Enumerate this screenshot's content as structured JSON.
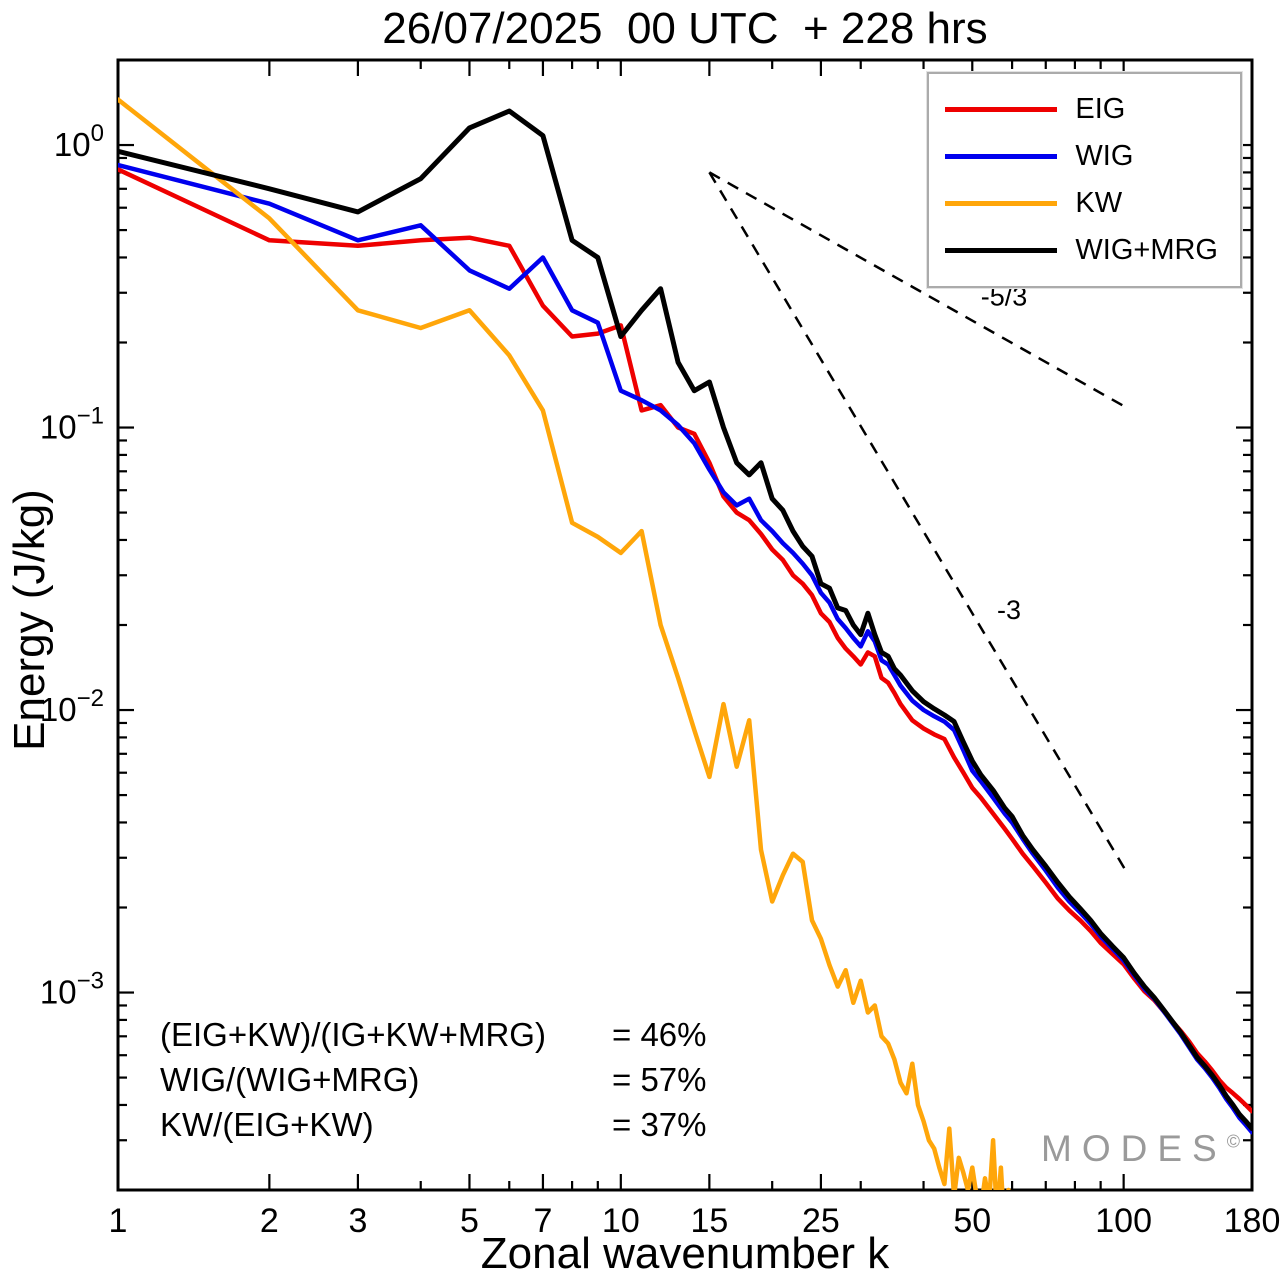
{
  "title": "26/07/2025  00 UTC  + 228 hrs",
  "watermark": {
    "text": "MODES",
    "sup": "©"
  },
  "annotations": {
    "ratios": [
      {
        "label": "(EIG+KW)/(IG+KW+MRG)",
        "value": "= 46%"
      },
      {
        "label": "WIG/(WIG+MRG)",
        "value": "= 57%"
      },
      {
        "label": "KW/(EIG+KW)",
        "value": "= 37%"
      }
    ]
  },
  "chart_data": {
    "type": "line",
    "title": "26/07/2025  00 UTC  + 228 hrs",
    "xlabel": "Zonal wavenumber k",
    "ylabel": "Energy (J/kg)",
    "xscale": "log",
    "yscale": "log",
    "xlim": [
      1,
      180
    ],
    "ylim": [
      0.0002,
      2
    ],
    "grid": false,
    "xticks": [
      1,
      2,
      3,
      5,
      7,
      10,
      15,
      25,
      50,
      100,
      180
    ],
    "ytick_exponents": [
      0,
      -1,
      -2,
      -3
    ],
    "legend": {
      "position": "top-right"
    },
    "reflines": [
      {
        "label": "-5/3",
        "x": [
          15,
          101
        ],
        "y": [
          0.8,
          0.118
        ],
        "label_at": [
          52,
          0.27
        ]
      },
      {
        "label": "-3",
        "x": [
          15,
          101
        ],
        "y": [
          0.8,
          0.0027
        ],
        "label_at": [
          56,
          0.021
        ]
      }
    ],
    "series": [
      {
        "name": "EIG",
        "color": "#ee0000",
        "width": 4.5,
        "points": [
          [
            1,
            0.82
          ],
          [
            2,
            0.46
          ],
          [
            3,
            0.44
          ],
          [
            4,
            0.46
          ],
          [
            5,
            0.47
          ],
          [
            6,
            0.44
          ],
          [
            7,
            0.27
          ],
          [
            8,
            0.21
          ],
          [
            9,
            0.215
          ],
          [
            10,
            0.23
          ],
          [
            11,
            0.115
          ],
          [
            12,
            0.12
          ],
          [
            13,
            0.1
          ],
          [
            14,
            0.095
          ],
          [
            15,
            0.075
          ],
          [
            16,
            0.057
          ],
          [
            17,
            0.05
          ],
          [
            18,
            0.047
          ],
          [
            19,
            0.042
          ],
          [
            20,
            0.037
          ],
          [
            21,
            0.034
          ],
          [
            22,
            0.03
          ],
          [
            23,
            0.028
          ],
          [
            24,
            0.0255
          ],
          [
            25,
            0.022
          ],
          [
            26,
            0.0205
          ],
          [
            27,
            0.018
          ],
          [
            28,
            0.0165
          ],
          [
            29,
            0.0155
          ],
          [
            30,
            0.0145
          ],
          [
            31,
            0.016
          ],
          [
            32,
            0.0155
          ],
          [
            33,
            0.013
          ],
          [
            34,
            0.0125
          ],
          [
            35,
            0.0115
          ],
          [
            36,
            0.0105
          ],
          [
            38,
            0.0092
          ],
          [
            40,
            0.0086
          ],
          [
            42,
            0.0082
          ],
          [
            44,
            0.0079
          ],
          [
            46,
            0.0068
          ],
          [
            48,
            0.006
          ],
          [
            50,
            0.0053
          ],
          [
            52,
            0.0049
          ],
          [
            55,
            0.0043
          ],
          [
            58,
            0.0038
          ],
          [
            60,
            0.0035
          ],
          [
            63,
            0.0031
          ],
          [
            66,
            0.0028
          ],
          [
            70,
            0.00245
          ],
          [
            74,
            0.00215
          ],
          [
            78,
            0.00195
          ],
          [
            82,
            0.0018
          ],
          [
            86,
            0.00165
          ],
          [
            90,
            0.0015
          ],
          [
            95,
            0.00137
          ],
          [
            100,
            0.00126
          ],
          [
            105,
            0.00112
          ],
          [
            110,
            0.00101
          ],
          [
            115,
            0.00094
          ],
          [
            120,
            0.00086
          ],
          [
            125,
            0.00079
          ],
          [
            130,
            0.00073
          ],
          [
            135,
            0.00067
          ],
          [
            140,
            0.00061
          ],
          [
            145,
            0.00057
          ],
          [
            150,
            0.00053
          ],
          [
            155,
            0.00049
          ],
          [
            160,
            0.00046
          ],
          [
            165,
            0.00044
          ],
          [
            170,
            0.00042
          ],
          [
            175,
            0.0004
          ],
          [
            180,
            0.00038
          ]
        ]
      },
      {
        "name": "WIG",
        "color": "#0000ee",
        "width": 4.5,
        "points": [
          [
            1,
            0.85
          ],
          [
            2,
            0.62
          ],
          [
            3,
            0.46
          ],
          [
            4,
            0.52
          ],
          [
            5,
            0.36
          ],
          [
            6,
            0.31
          ],
          [
            7,
            0.4
          ],
          [
            8,
            0.26
          ],
          [
            9,
            0.235
          ],
          [
            10,
            0.135
          ],
          [
            11,
            0.125
          ],
          [
            12,
            0.115
          ],
          [
            13,
            0.102
          ],
          [
            14,
            0.088
          ],
          [
            15,
            0.071
          ],
          [
            16,
            0.059
          ],
          [
            17,
            0.053
          ],
          [
            18,
            0.056
          ],
          [
            19,
            0.047
          ],
          [
            20,
            0.043
          ],
          [
            21,
            0.039
          ],
          [
            22,
            0.036
          ],
          [
            23,
            0.033
          ],
          [
            24,
            0.03
          ],
          [
            25,
            0.026
          ],
          [
            26,
            0.024
          ],
          [
            27,
            0.021
          ],
          [
            28,
            0.0195
          ],
          [
            29,
            0.018
          ],
          [
            30,
            0.0168
          ],
          [
            31,
            0.019
          ],
          [
            32,
            0.0175
          ],
          [
            33,
            0.015
          ],
          [
            34,
            0.0145
          ],
          [
            35,
            0.0133
          ],
          [
            36,
            0.0122
          ],
          [
            38,
            0.0108
          ],
          [
            40,
            0.01
          ],
          [
            42,
            0.0095
          ],
          [
            44,
            0.0091
          ],
          [
            46,
            0.0085
          ],
          [
            48,
            0.0072
          ],
          [
            50,
            0.0061
          ],
          [
            52,
            0.0056
          ],
          [
            55,
            0.0049
          ],
          [
            58,
            0.0043
          ],
          [
            60,
            0.004
          ],
          [
            63,
            0.0035
          ],
          [
            66,
            0.0031
          ],
          [
            70,
            0.0027
          ],
          [
            74,
            0.00235
          ],
          [
            78,
            0.0021
          ],
          [
            82,
            0.00192
          ],
          [
            86,
            0.00175
          ],
          [
            90,
            0.00158
          ],
          [
            95,
            0.00143
          ],
          [
            100,
            0.0013
          ],
          [
            105,
            0.00115
          ],
          [
            110,
            0.00103
          ],
          [
            115,
            0.00095
          ],
          [
            120,
            0.00086
          ],
          [
            125,
            0.00078
          ],
          [
            130,
            0.00071
          ],
          [
            135,
            0.00064
          ],
          [
            140,
            0.00058
          ],
          [
            145,
            0.00054
          ],
          [
            150,
            0.0005
          ],
          [
            155,
            0.00046
          ],
          [
            160,
            0.00042
          ],
          [
            165,
            0.00039
          ],
          [
            170,
            0.00036
          ],
          [
            175,
            0.00034
          ],
          [
            180,
            0.00032
          ]
        ]
      },
      {
        "name": "KW",
        "color": "#ffa60a",
        "width": 4.5,
        "points": [
          [
            1,
            1.45
          ],
          [
            2,
            0.55
          ],
          [
            3,
            0.26
          ],
          [
            4,
            0.225
          ],
          [
            5,
            0.26
          ],
          [
            6,
            0.18
          ],
          [
            7,
            0.115
          ],
          [
            8,
            0.046
          ],
          [
            9,
            0.041
          ],
          [
            10,
            0.036
          ],
          [
            11,
            0.043
          ],
          [
            12,
            0.02
          ],
          [
            13,
            0.013
          ],
          [
            14,
            0.0085
          ],
          [
            15,
            0.0058
          ],
          [
            16,
            0.0105
          ],
          [
            17,
            0.0063
          ],
          [
            18,
            0.0092
          ],
          [
            19,
            0.0032
          ],
          [
            20,
            0.0021
          ],
          [
            21,
            0.0026
          ],
          [
            22,
            0.0031
          ],
          [
            23,
            0.0029
          ],
          [
            24,
            0.0018
          ],
          [
            25,
            0.00155
          ],
          [
            26,
            0.00125
          ],
          [
            27,
            0.00105
          ],
          [
            28,
            0.0012
          ],
          [
            29,
            0.00092
          ],
          [
            30,
            0.0011
          ],
          [
            31,
            0.00085
          ],
          [
            32,
            0.0009
          ],
          [
            33,
            0.0007
          ],
          [
            34,
            0.00066
          ],
          [
            35,
            0.00058
          ],
          [
            36,
            0.00048
          ],
          [
            37,
            0.00044
          ],
          [
            38,
            0.00056
          ],
          [
            39,
            0.0004
          ],
          [
            40,
            0.00035
          ],
          [
            41,
            0.0003
          ],
          [
            42,
            0.00028
          ],
          [
            43,
            0.00024
          ],
          [
            44,
            0.00021
          ],
          [
            45,
            0.00033
          ],
          [
            46,
            0.00019
          ],
          [
            47,
            0.00026
          ],
          [
            48,
            0.00023
          ],
          [
            49,
            0.0002
          ],
          [
            50,
            0.00024
          ],
          [
            51,
            0.00019
          ],
          [
            52,
            0.00017
          ],
          [
            53,
            0.00022
          ],
          [
            54,
            0.00018
          ],
          [
            55,
            0.0003
          ],
          [
            56,
            0.00016
          ],
          [
            57,
            0.00024
          ],
          [
            58,
            0.00014
          ],
          [
            59,
            0.0002
          ],
          [
            60,
            0.00013
          ],
          [
            61,
            0.00017
          ],
          [
            62,
            0.00012
          ]
        ]
      },
      {
        "name": "WIG+MRG",
        "color": "#000000",
        "width": 5,
        "points": [
          [
            1,
            0.95
          ],
          [
            2,
            0.7
          ],
          [
            3,
            0.58
          ],
          [
            4,
            0.76
          ],
          [
            5,
            1.15
          ],
          [
            6,
            1.32
          ],
          [
            7,
            1.08
          ],
          [
            8,
            0.46
          ],
          [
            9,
            0.4
          ],
          [
            10,
            0.21
          ],
          [
            11,
            0.26
          ],
          [
            12,
            0.31
          ],
          [
            13,
            0.17
          ],
          [
            14,
            0.135
          ],
          [
            15,
            0.145
          ],
          [
            16,
            0.1
          ],
          [
            17,
            0.075
          ],
          [
            18,
            0.068
          ],
          [
            19,
            0.075
          ],
          [
            20,
            0.056
          ],
          [
            21,
            0.051
          ],
          [
            22,
            0.043
          ],
          [
            23,
            0.038
          ],
          [
            24,
            0.035
          ],
          [
            25,
            0.028
          ],
          [
            26,
            0.027
          ],
          [
            27,
            0.023
          ],
          [
            28,
            0.0225
          ],
          [
            29,
            0.02
          ],
          [
            30,
            0.0185
          ],
          [
            31,
            0.022
          ],
          [
            32,
            0.0185
          ],
          [
            33,
            0.016
          ],
          [
            34,
            0.0155
          ],
          [
            35,
            0.014
          ],
          [
            36,
            0.0133
          ],
          [
            38,
            0.0117
          ],
          [
            40,
            0.0107
          ],
          [
            42,
            0.0101
          ],
          [
            44,
            0.0096
          ],
          [
            46,
            0.0091
          ],
          [
            48,
            0.0077
          ],
          [
            50,
            0.0066
          ],
          [
            52,
            0.0059
          ],
          [
            55,
            0.0052
          ],
          [
            58,
            0.0045
          ],
          [
            60,
            0.0042
          ],
          [
            63,
            0.0036
          ],
          [
            66,
            0.0032
          ],
          [
            70,
            0.0028
          ],
          [
            74,
            0.00245
          ],
          [
            78,
            0.00218
          ],
          [
            82,
            0.00198
          ],
          [
            86,
            0.0018
          ],
          [
            90,
            0.00162
          ],
          [
            95,
            0.00146
          ],
          [
            100,
            0.00133
          ],
          [
            105,
            0.00117
          ],
          [
            110,
            0.00105
          ],
          [
            115,
            0.00096
          ],
          [
            120,
            0.00087
          ],
          [
            125,
            0.00079
          ],
          [
            130,
            0.00072
          ],
          [
            135,
            0.00065
          ],
          [
            140,
            0.00059
          ],
          [
            145,
            0.00055
          ],
          [
            150,
            0.00051
          ],
          [
            155,
            0.00047
          ],
          [
            160,
            0.00043
          ],
          [
            165,
            0.0004
          ],
          [
            170,
            0.00037
          ],
          [
            175,
            0.00035
          ],
          [
            180,
            0.00033
          ]
        ]
      }
    ]
  }
}
